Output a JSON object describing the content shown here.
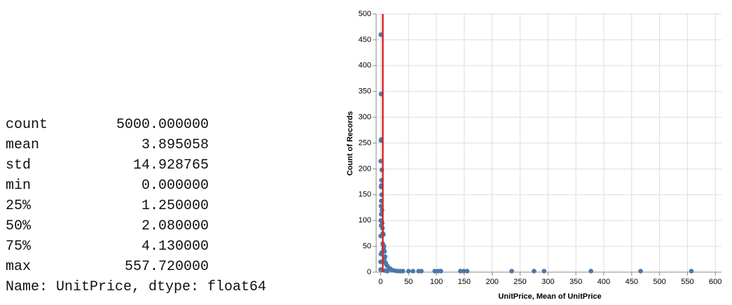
{
  "stats": {
    "rows": [
      {
        "label": "count",
        "value": "5000.000000"
      },
      {
        "label": "mean",
        "value": "3.895058"
      },
      {
        "label": "std",
        "value": "14.928765"
      },
      {
        "label": "min",
        "value": "0.000000"
      },
      {
        "label": "25%",
        "value": "1.250000"
      },
      {
        "label": "50%",
        "value": "2.080000"
      },
      {
        "label": "75%",
        "value": "4.130000"
      },
      {
        "label": "max",
        "value": "557.720000"
      }
    ],
    "footer": "Name: UnitPrice, dtype: float64"
  },
  "chart_data": {
    "type": "scatter",
    "x_label": "UnitPrice, Mean of UnitPrice",
    "y_label": "Count of Records",
    "x": [
      0.4,
      0.8,
      1.25,
      0.5,
      0.2,
      2.1,
      1.6,
      1.5,
      0.8,
      1.7,
      1.2,
      0.6,
      2.5,
      1.0,
      0.3,
      2.9,
      0.9,
      3.3,
      4.1,
      5,
      0.1,
      3.8,
      4.9,
      6,
      5.5,
      7,
      2,
      8,
      6.5,
      9,
      10,
      12,
      15,
      18,
      20,
      25,
      30,
      35,
      40,
      50,
      58,
      68,
      73,
      97,
      103,
      108,
      143,
      149,
      155,
      235,
      275,
      293,
      377,
      466,
      557,
      12,
      8,
      0,
      0,
      0.5
    ],
    "values": [
      460,
      345,
      257,
      255,
      215,
      198,
      178,
      168,
      165,
      150,
      138,
      128,
      120,
      112,
      100,
      95,
      90,
      85,
      75,
      73,
      70,
      55,
      52,
      50,
      45,
      40,
      38,
      30,
      25,
      18,
      15,
      12,
      8,
      6,
      4,
      3,
      2,
      2,
      2,
      2,
      2,
      2,
      2,
      2,
      2,
      2,
      2,
      2,
      2,
      2,
      2,
      2,
      2,
      2,
      2,
      2,
      3,
      5,
      20,
      35
    ],
    "color": "#4c78a8",
    "rule_x": 3.895058,
    "rule_color": "#d62728",
    "xlim": [
      -8,
      611
    ],
    "xticks": [
      0,
      50,
      100,
      150,
      200,
      250,
      300,
      350,
      400,
      450,
      500,
      550,
      600
    ],
    "ylim": [
      0,
      500
    ],
    "yticks": [
      0,
      50,
      100,
      150,
      200,
      250,
      300,
      350,
      400,
      450,
      500
    ],
    "grid": true
  }
}
